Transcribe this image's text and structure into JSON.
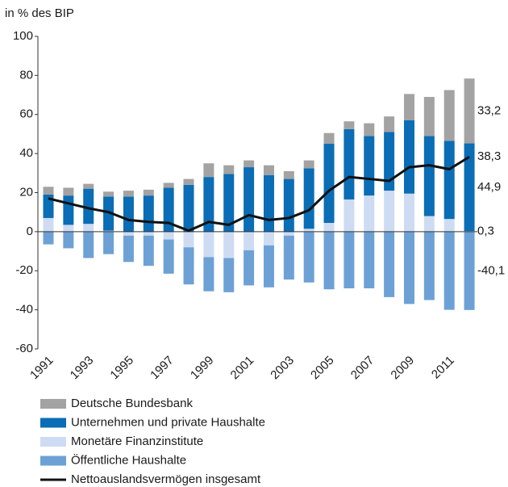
{
  "chart_data": {
    "type": "bar",
    "stacked": true,
    "y_axis_label": "in % des BIP",
    "categories": [
      "1991",
      null,
      "1993",
      null,
      "1995",
      null,
      "1997",
      null,
      "1999",
      null,
      "2001",
      null,
      "2003",
      null,
      "2005",
      null,
      "2007",
      null,
      "2009",
      null,
      "2011",
      null
    ],
    "ylim": [
      -60,
      100
    ],
    "yticks": [
      -60,
      -40,
      -20,
      0,
      20,
      40,
      60,
      80,
      100
    ],
    "legend": "bottom",
    "series": [
      {
        "name": "Deutsche Bundesbank",
        "color": "#a3a3a3",
        "values": [
          4,
          4,
          2.5,
          2.5,
          3,
          3,
          2.5,
          3,
          7,
          4.5,
          3.5,
          5,
          4,
          4,
          5.5,
          4,
          6.5,
          8,
          13.5,
          20,
          26,
          33.2
        ],
        "value_labels": [
          null,
          null,
          null,
          null,
          null,
          null,
          null,
          null,
          null,
          null,
          null,
          null,
          null,
          null,
          null,
          null,
          null,
          null,
          null,
          null,
          null,
          "33,2"
        ]
      },
      {
        "name": "Unternehmen und private Haushalte",
        "color": "#0a6db5",
        "values": [
          12,
          15,
          18,
          17.5,
          18,
          18.5,
          22.5,
          24,
          28,
          29.5,
          33,
          29,
          27,
          31,
          40.5,
          36,
          30.5,
          30,
          37.5,
          41,
          40,
          44.9
        ],
        "value_labels": [
          null,
          null,
          null,
          null,
          null,
          null,
          null,
          null,
          null,
          null,
          null,
          null,
          null,
          null,
          null,
          null,
          null,
          null,
          null,
          null,
          null,
          "44,9"
        ]
      },
      {
        "name": "Monetäre Finanzinstitute",
        "color": "#cddcf3",
        "values": [
          7,
          3.5,
          4,
          0.5,
          -2,
          -2,
          -4,
          -8,
          -13,
          -13.5,
          -9.5,
          -7,
          -2,
          1.5,
          4.5,
          16.5,
          18.5,
          21,
          19.5,
          8,
          6.5,
          0.3
        ],
        "value_labels": [
          null,
          null,
          null,
          null,
          null,
          null,
          null,
          null,
          null,
          null,
          null,
          null,
          null,
          null,
          null,
          null,
          null,
          null,
          null,
          null,
          null,
          "0,3"
        ]
      },
      {
        "name": "Öffentliche Haushalte",
        "color": "#6da1d6",
        "values": [
          -6.5,
          -8.5,
          -13.5,
          -11.5,
          -13.5,
          -15.5,
          -17.5,
          -19,
          -17.5,
          -17.5,
          -18,
          -21.5,
          -22.5,
          -26,
          -29.5,
          -29,
          -29,
          -33.5,
          -37,
          -35,
          -40,
          -40.1
        ],
        "value_labels": [
          null,
          null,
          null,
          null,
          null,
          null,
          null,
          null,
          null,
          null,
          null,
          null,
          null,
          null,
          null,
          null,
          null,
          null,
          null,
          null,
          null,
          "-40,1"
        ]
      },
      {
        "name": "Nettoauslandsvermögen insgesamt",
        "color": "#111111",
        "type": "line",
        "values": [
          17,
          14.5,
          12,
          10,
          6,
          5,
          4.5,
          0.5,
          5,
          3.5,
          8.5,
          6,
          7,
          11,
          21,
          28,
          27,
          26,
          33,
          34,
          32,
          38.3
        ],
        "value_labels": [
          null,
          null,
          null,
          null,
          null,
          null,
          null,
          null,
          null,
          null,
          null,
          null,
          null,
          null,
          null,
          null,
          null,
          null,
          null,
          null,
          null,
          "38,3"
        ]
      }
    ]
  }
}
